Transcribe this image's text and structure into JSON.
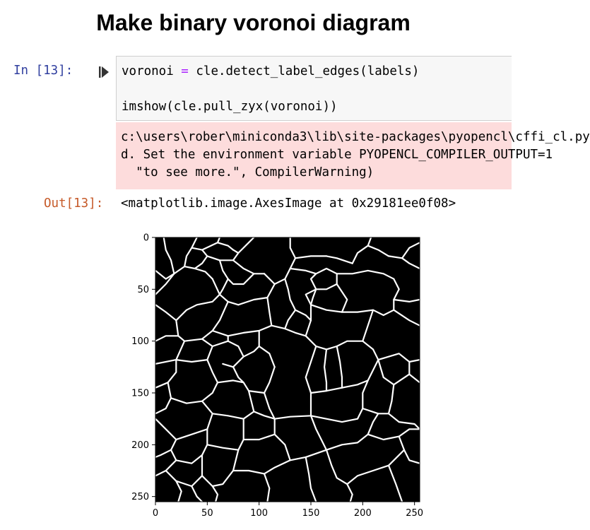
{
  "heading": "Make binary voronoi diagram",
  "cell": {
    "in_prompt": "In [13]:",
    "code_lines": [
      {
        "pre": "voronoi ",
        "op": "=",
        "post": " cle.detect_label_edges(labels)"
      },
      {
        "pre": "imshow(cle.pull_zyx(voronoi))",
        "op": "",
        "post": ""
      }
    ],
    "stderr_lines": [
      "c:\\users\\rober\\miniconda3\\lib\\site-packages\\pyopencl\\cffi_cl.py",
      "d. Set the environment variable PYOPENCL_COMPILER_OUTPUT=1",
      "  \"to see more.\", CompilerWarning)"
    ],
    "out_prompt": "Out[13]:",
    "out_repr": "<matplotlib.image.AxesImage at 0x29181ee0f08>"
  },
  "chart_data": {
    "type": "image",
    "x_ticks": [
      0,
      50,
      100,
      150,
      200,
      250
    ],
    "y_ticks": [
      0,
      50,
      100,
      150,
      200,
      250
    ],
    "xlim": [
      0,
      255
    ],
    "ylim": [
      255,
      0
    ],
    "colormap": "gray",
    "background_color": "#000000",
    "edge_color": "#ffffff"
  }
}
